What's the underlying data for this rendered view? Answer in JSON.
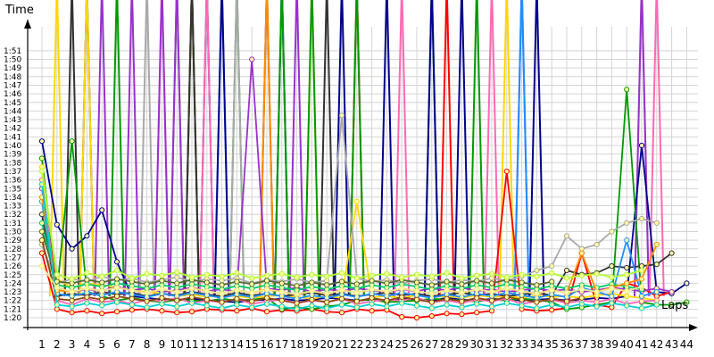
{
  "chart_data": {
    "type": "line",
    "ylabel": "Time",
    "xlabel": "Laps",
    "x": [
      1,
      2,
      3,
      4,
      5,
      6,
      7,
      8,
      9,
      10,
      11,
      12,
      13,
      14,
      15,
      16,
      17,
      18,
      19,
      20,
      21,
      22,
      23,
      24,
      25,
      26,
      27,
      28,
      29,
      30,
      31,
      32,
      33,
      34,
      35,
      36,
      37,
      38,
      39,
      40,
      41,
      42,
      43,
      44
    ],
    "xlim": [
      1,
      44
    ],
    "ylim_seconds": [
      80,
      112
    ],
    "yticks": [
      "1:20",
      "1:21",
      "1:22",
      "1:23",
      "1:24",
      "1:25",
      "1:26",
      "1:27",
      "1:28",
      "1:29",
      "1:30",
      "1:31",
      "1:32",
      "1:33",
      "1:34",
      "1:35",
      "1:36",
      "1:37",
      "1:38",
      "1:39",
      "1:40",
      "1:41",
      "1:42",
      "1:43",
      "1:44",
      "1:45",
      "1:46",
      "1:47",
      "1:48",
      "1:49",
      "1:50",
      "1:51"
    ],
    "grid": true,
    "series": [
      {
        "color": "#00008b",
        "values": [
          100.5,
          90.8,
          88.0,
          89.5,
          92.5,
          86.5,
          82.5,
          82.3,
          82.1,
          82.0,
          82.2,
          82.0,
          81.9,
          81.8,
          82.0,
          82.1,
          82.2,
          82.0,
          82.1,
          82.3,
          82.2,
          82.0,
          82.1,
          82.0,
          82.2,
          82.1,
          82.0,
          82.3,
          82.1,
          82.0,
          82.2,
          82.1,
          82.0,
          82.1,
          82.2,
          82.0,
          82.1,
          82.3,
          82.2,
          82.5,
          100.0,
          83.0,
          82.8,
          84.0
        ]
      },
      {
        "color": "#ff0000",
        "values": [
          87.5,
          81.0,
          80.6,
          80.8,
          80.5,
          80.7,
          80.9,
          81.0,
          80.8,
          80.6,
          80.7,
          81.0,
          80.9,
          80.8,
          81.1,
          80.7,
          80.9,
          80.8,
          81.0,
          80.7,
          80.6,
          81.0,
          80.8,
          80.9,
          80.1,
          80.0,
          80.2,
          80.5,
          80.4,
          80.6,
          80.8,
          97.0,
          81.0,
          80.8,
          80.9,
          81.1,
          87.5,
          81.5,
          81.2,
          84.0,
          83.5,
          82.5,
          83.0,
          null
        ]
      },
      {
        "color": "#009900",
        "values": [
          98.5,
          83.0,
          100.5,
          83.0,
          82.5,
          82.0,
          82.3,
          82.0,
          81.8,
          82.1,
          82.0,
          81.9,
          82.2,
          82.0,
          82.1,
          82.3,
          81.0,
          81.2,
          81.0,
          81.3,
          81.5,
          82.0,
          82.1,
          81.8,
          81.9,
          82.0,
          82.2,
          82.1,
          82.0,
          81.9,
          82.1,
          82.0,
          82.2,
          82.1,
          81.8,
          81.0,
          81.2,
          81.5,
          81.8,
          106.5,
          81.8,
          81.5,
          81.5,
          81.8
        ]
      },
      {
        "color": "#ffd700",
        "values": [
          97.5,
          84.5,
          83.5,
          84.0,
          83.8,
          83.5,
          83.2,
          83.0,
          82.8,
          82.5,
          82.7,
          82.4,
          82.6,
          82.5,
          82.3,
          82.5,
          82.6,
          82.4,
          82.2,
          82.5,
          82.3,
          93.5,
          82.4,
          82.5,
          82.3,
          82.6,
          82.4,
          82.5,
          82.3,
          82.6,
          82.4,
          82.5,
          82.3,
          82.6,
          82.4,
          82.5,
          82.3,
          82.6,
          82.8,
          82.5,
          82.3,
          82.0,
          null,
          null
        ]
      },
      {
        "color": "#9932cc",
        "values": [
          95.0,
          83.5,
          83.0,
          83.3,
          83.1,
          83.6,
          83.2,
          83.4,
          83.0,
          83.2,
          83.5,
          83.1,
          83.3,
          83.0,
          110.0,
          83.4,
          83.2,
          83.5,
          83.0,
          83.3,
          83.1,
          83.4,
          83.2,
          83.0,
          83.3,
          83.1,
          83.4,
          83.2,
          83.5,
          83.1,
          83.3,
          83.0,
          83.2,
          83.4,
          83.1,
          83.3,
          83.0,
          83.2,
          83.5,
          83.3,
          83.1,
          83.4,
          83.0,
          null
        ]
      },
      {
        "color": "#a9a9a9",
        "values": [
          88.5,
          84.0,
          84.5,
          84.2,
          84.8,
          84.3,
          84.6,
          84.1,
          84.4,
          84.7,
          84.2,
          84.5,
          84.3,
          84.6,
          84.0,
          84.4,
          84.2,
          84.5,
          84.1,
          84.3,
          103.5,
          84.6,
          84.2,
          84.4,
          84.0,
          84.3,
          84.5,
          84.1,
          84.4,
          84.2,
          84.6,
          84.3,
          84.8,
          85.5,
          86.0,
          89.5,
          88.0,
          88.5,
          90.0,
          91.0,
          91.5,
          91.0,
          null,
          null
        ]
      },
      {
        "color": "#333333",
        "values": [
          92.0,
          82.5,
          82.8,
          82.6,
          83.0,
          82.7,
          82.9,
          82.5,
          82.8,
          82.6,
          83.0,
          82.7,
          82.5,
          82.9,
          82.6,
          82.8,
          82.5,
          82.7,
          82.9,
          82.6,
          82.8,
          82.5,
          82.7,
          82.9,
          82.6,
          82.8,
          82.5,
          82.7,
          82.9,
          82.6,
          82.8,
          82.5,
          82.7,
          82.9,
          82.6,
          85.5,
          85.0,
          85.2,
          86.0,
          85.8,
          86.0,
          86.2,
          87.5,
          null
        ]
      },
      {
        "color": "#ff69b4",
        "values": [
          96.0,
          82.0,
          81.5,
          82.2,
          81.8,
          82.0,
          81.6,
          82.1,
          81.9,
          82.3,
          81.7,
          82.0,
          81.8,
          82.2,
          81.6,
          81.9,
          82.1,
          81.7,
          82.0,
          81.8,
          82.2,
          81.6,
          81.9,
          82.1,
          82.0,
          82.3,
          81.8,
          82.0,
          81.7,
          82.1,
          81.9,
          82.2,
          81.6,
          81.9,
          82.1,
          81.7,
          82.0,
          81.8,
          82.2,
          81.6,
          81.9,
          82.0,
          null,
          null
        ]
      },
      {
        "color": "#1e90ff",
        "values": [
          93.5,
          82.8,
          82.5,
          82.9,
          82.6,
          83.0,
          82.7,
          82.4,
          82.8,
          82.5,
          82.9,
          82.6,
          82.3,
          82.7,
          82.4,
          82.8,
          82.5,
          82.2,
          82.6,
          82.3,
          82.7,
          82.4,
          82.8,
          82.5,
          82.9,
          82.6,
          82.3,
          82.7,
          82.4,
          82.8,
          82.5,
          82.9,
          82.6,
          82.3,
          82.7,
          82.4,
          83.5,
          83.0,
          82.5,
          89.0,
          82.5,
          83.0,
          null,
          null
        ]
      },
      {
        "color": "#00cc66",
        "values": [
          91.0,
          83.8,
          83.5,
          83.9,
          83.6,
          84.0,
          83.7,
          83.4,
          83.8,
          83.5,
          83.9,
          83.6,
          83.3,
          83.7,
          83.4,
          83.8,
          83.5,
          83.2,
          83.6,
          83.3,
          83.7,
          83.4,
          83.8,
          83.5,
          83.9,
          83.6,
          83.3,
          83.7,
          83.4,
          83.8,
          83.5,
          83.9,
          83.6,
          83.3,
          83.7,
          83.4,
          83.8,
          83.5,
          83.9,
          83.6,
          83.3,
          null,
          null,
          null
        ]
      },
      {
        "color": "#ff8c00",
        "values": [
          94.0,
          83.2,
          83.0,
          83.4,
          83.1,
          83.5,
          83.2,
          82.9,
          83.3,
          83.0,
          83.4,
          83.1,
          82.8,
          83.2,
          82.9,
          83.3,
          83.0,
          82.7,
          83.1,
          82.8,
          83.2,
          82.9,
          83.3,
          83.0,
          83.4,
          83.1,
          82.8,
          83.2,
          82.9,
          83.3,
          83.0,
          83.4,
          83.1,
          82.8,
          83.2,
          82.9,
          87.5,
          83.0,
          83.5,
          84.0,
          84.5,
          88.5,
          null,
          null
        ]
      },
      {
        "color": "#556b2f",
        "values": [
          90.0,
          84.2,
          84.0,
          84.4,
          84.1,
          84.5,
          84.2,
          83.9,
          84.3,
          84.0,
          84.4,
          84.1,
          83.8,
          84.2,
          83.9,
          84.3,
          84.0,
          83.7,
          84.1,
          83.8,
          84.2,
          83.9,
          84.3,
          84.0,
          84.4,
          84.1,
          83.8,
          84.2,
          83.9,
          84.3,
          84.0,
          84.4,
          84.1,
          83.8,
          84.2,
          null,
          null,
          null,
          null,
          null,
          null,
          null,
          null,
          null
        ]
      },
      {
        "color": "#8b4513",
        "values": [
          89.0,
          82.2,
          82.0,
          82.4,
          82.1,
          82.5,
          82.2,
          81.9,
          82.3,
          82.0,
          82.4,
          82.1,
          81.8,
          82.2,
          81.9,
          82.3,
          82.0,
          81.7,
          82.1,
          81.8,
          82.2,
          81.9,
          82.3,
          82.0,
          82.4,
          82.1,
          81.8,
          82.2,
          81.9,
          82.3,
          82.0,
          82.4,
          82.1,
          81.8,
          82.2,
          81.9,
          82.3,
          null,
          null,
          null,
          null,
          null,
          null,
          null
        ]
      },
      {
        "color": "#00ced1",
        "values": [
          95.5,
          81.5,
          81.3,
          81.7,
          81.4,
          81.8,
          81.5,
          81.2,
          81.6,
          81.3,
          81.7,
          81.4,
          81.1,
          81.5,
          81.2,
          81.6,
          81.3,
          81.0,
          81.4,
          81.1,
          81.5,
          81.2,
          81.6,
          81.3,
          81.7,
          81.4,
          81.1,
          81.5,
          81.2,
          81.6,
          81.3,
          81.7,
          81.4,
          81.1,
          81.5,
          81.2,
          81.6,
          81.3,
          81.7,
          81.4,
          81.1,
          81.5,
          null,
          null
        ]
      },
      {
        "color": "#adff2f",
        "values": [
          97.0,
          85.0,
          84.5,
          85.2,
          84.8,
          85.5,
          84.6,
          85.1,
          84.9,
          85.3,
          84.7,
          85.0,
          84.8,
          85.2,
          84.6,
          84.9,
          85.1,
          84.7,
          85.0,
          84.8,
          85.2,
          84.6,
          84.9,
          85.1,
          84.7,
          85.0,
          84.8,
          85.2,
          84.6,
          84.9,
          85.1,
          84.7,
          85.0,
          84.8,
          85.2,
          84.6,
          84.9,
          85.1,
          84.7,
          85.0,
          85.5,
          null,
          null,
          null
        ]
      },
      {
        "color": "#f0e68c",
        "values": [
          86.0,
          83.5,
          83.0,
          83.4,
          83.1,
          83.5,
          83.2,
          82.9,
          83.3,
          83.0,
          83.4,
          83.1,
          82.8,
          83.2,
          82.9,
          83.3,
          83.0,
          82.7,
          83.1,
          82.8,
          83.2,
          82.9,
          83.3,
          83.0,
          83.4,
          83.1,
          82.8,
          83.2,
          82.9,
          83.3,
          83.0,
          83.4,
          83.1,
          82.8,
          83.2,
          82.9,
          83.3,
          83.0,
          83.4,
          83.1,
          83.6,
          null,
          null,
          null
        ]
      }
    ],
    "spikes": [
      {
        "color": "#ffd700",
        "x": 2
      },
      {
        "color": "#333333",
        "x": 3
      },
      {
        "color": "#00008b",
        "x": 4
      },
      {
        "color": "#ffd700",
        "x": 4
      },
      {
        "color": "#9932cc",
        "x": 5
      },
      {
        "color": "#009900",
        "x": 6
      },
      {
        "color": "#9932cc",
        "x": 7
      },
      {
        "color": "#a9a9a9",
        "x": 8
      },
      {
        "color": "#ff69b4",
        "x": 9
      },
      {
        "color": "#9932cc",
        "x": 9
      },
      {
        "color": "#556b2f",
        "x": 10
      },
      {
        "color": "#9932cc",
        "x": 10
      },
      {
        "color": "#ff0000",
        "x": 11
      },
      {
        "color": "#009900",
        "x": 11
      },
      {
        "color": "#333333",
        "x": 11
      },
      {
        "color": "#00008b",
        "x": 12
      },
      {
        "color": "#ff69b4",
        "x": 12
      },
      {
        "color": "#1e90ff",
        "x": 13
      },
      {
        "color": "#00008b",
        "x": 13
      },
      {
        "color": "#009900",
        "x": 14
      },
      {
        "color": "#a9a9a9",
        "x": 14
      },
      {
        "color": "#333333",
        "x": 16
      },
      {
        "color": "#ff8c00",
        "x": 16
      },
      {
        "color": "#00008b",
        "x": 17
      },
      {
        "color": "#009900",
        "x": 17
      },
      {
        "color": "#9932cc",
        "x": 18
      },
      {
        "color": "#ffd700",
        "x": 19
      },
      {
        "color": "#009900",
        "x": 19
      },
      {
        "color": "#333333",
        "x": 20
      },
      {
        "color": "#00008b",
        "x": 21
      },
      {
        "color": "#ff0000",
        "x": 22
      },
      {
        "color": "#009900",
        "x": 22
      },
      {
        "color": "#00008b",
        "x": 24
      },
      {
        "color": "#ff69b4",
        "x": 25
      },
      {
        "color": "#009900",
        "x": 27
      },
      {
        "color": "#00008b",
        "x": 27
      },
      {
        "color": "#ff0000",
        "x": 28
      },
      {
        "color": "#00008b",
        "x": 29
      },
      {
        "color": "#009900",
        "x": 30
      },
      {
        "color": "#ff69b4",
        "x": 31
      },
      {
        "color": "#ffd700",
        "x": 32
      },
      {
        "color": "#9932cc",
        "x": 33
      },
      {
        "color": "#1e90ff",
        "x": 33
      },
      {
        "color": "#00008b",
        "x": 34
      },
      {
        "color": "#a9a9a9",
        "x": 41
      },
      {
        "color": "#9932cc",
        "x": 41
      },
      {
        "color": "#ff69b4",
        "x": 42
      }
    ]
  }
}
